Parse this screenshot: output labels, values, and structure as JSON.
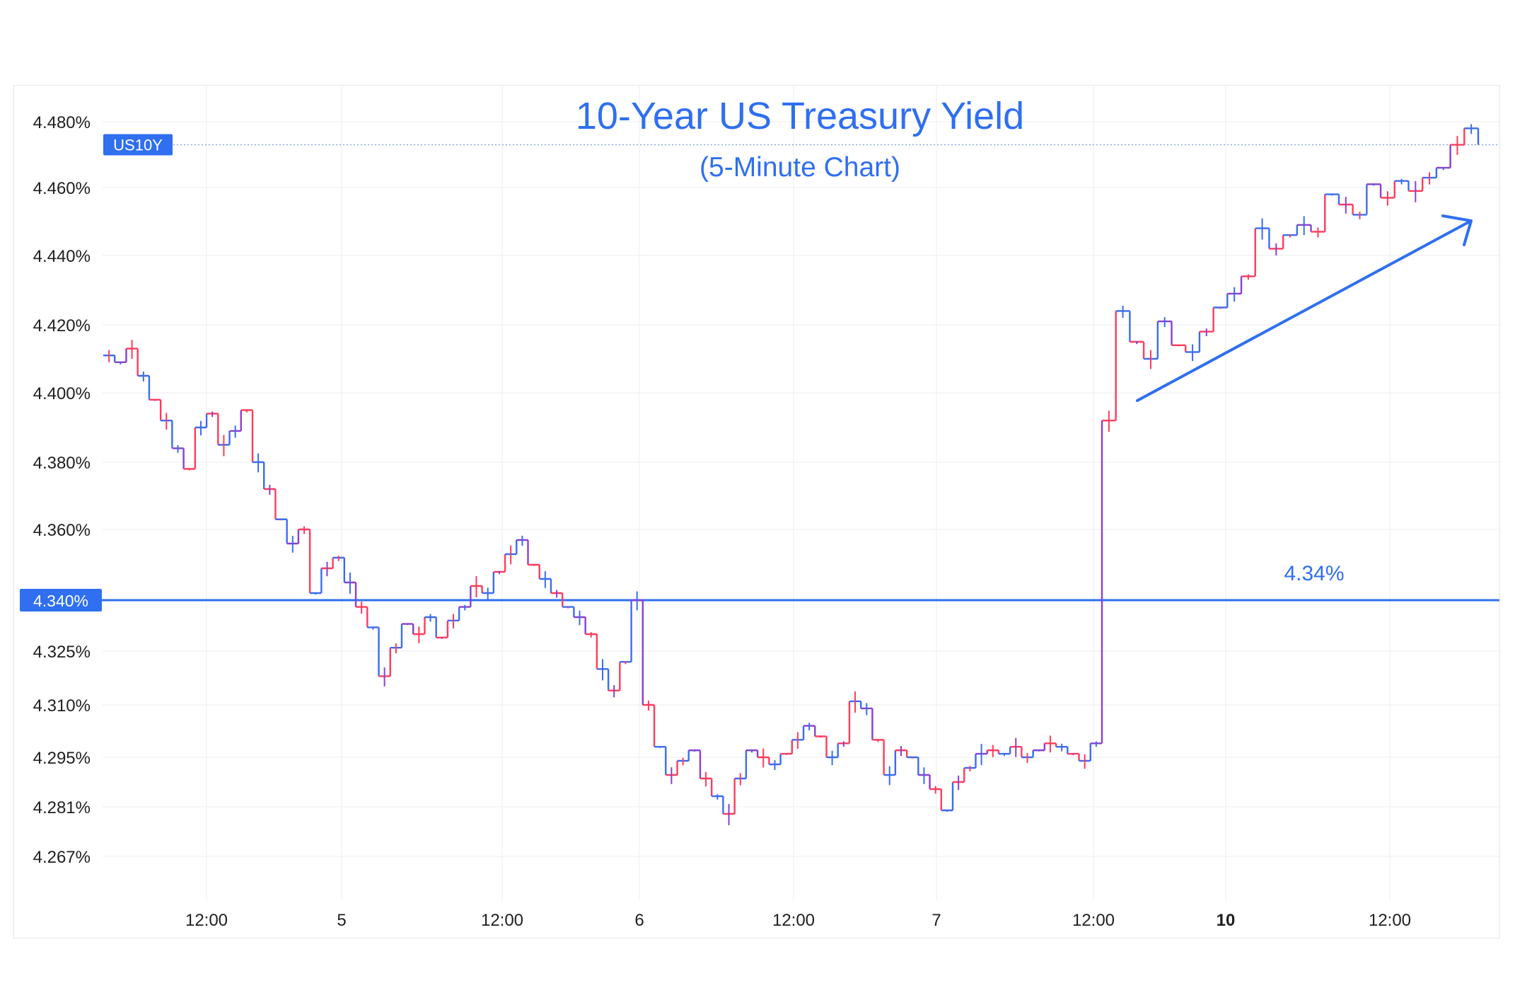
{
  "chart_data": {
    "type": "line",
    "title": "10-Year US Treasury Yield",
    "subtitle": "(5-Minute Chart)",
    "symbol_badge": "US10Y",
    "price_badge": "4.340%",
    "reference_label": "4.34%",
    "reference_value": 4.34,
    "y_ticks": [
      "4.480%",
      "4.460%",
      "4.440%",
      "4.420%",
      "4.400%",
      "4.380%",
      "4.360%",
      "4.340%",
      "4.325%",
      "4.310%",
      "4.295%",
      "4.281%",
      "4.267%"
    ],
    "x_ticks": [
      {
        "label": "12:00",
        "bold": false
      },
      {
        "label": "5",
        "bold": false
      },
      {
        "label": "12:00",
        "bold": false
      },
      {
        "label": "6",
        "bold": false
      },
      {
        "label": "12:00",
        "bold": false
      },
      {
        "label": "7",
        "bold": false
      },
      {
        "label": "12:00",
        "bold": false
      },
      {
        "label": "10",
        "bold": true
      },
      {
        "label": "12:00",
        "bold": false
      }
    ],
    "grid": true,
    "annotation": "upward trend arrow",
    "current_value": 4.473,
    "points": [
      4.411,
      4.409,
      4.413,
      4.405,
      4.398,
      4.392,
      4.384,
      4.378,
      4.39,
      4.394,
      4.385,
      4.389,
      4.395,
      4.38,
      4.372,
      4.363,
      4.356,
      4.36,
      4.342,
      4.349,
      4.352,
      4.345,
      4.338,
      4.332,
      4.318,
      4.326,
      4.333,
      4.33,
      4.335,
      4.329,
      4.334,
      4.338,
      4.344,
      4.342,
      4.348,
      4.353,
      4.357,
      4.35,
      4.346,
      4.342,
      4.338,
      4.335,
      4.33,
      4.32,
      4.314,
      4.322,
      4.34,
      4.31,
      4.298,
      4.29,
      4.294,
      4.297,
      4.289,
      4.284,
      4.279,
      4.289,
      4.297,
      4.295,
      4.293,
      4.296,
      4.3,
      4.304,
      4.301,
      4.295,
      4.299,
      4.311,
      4.309,
      4.3,
      4.29,
      4.297,
      4.295,
      4.29,
      4.286,
      4.28,
      4.288,
      4.292,
      4.296,
      4.297,
      4.296,
      4.298,
      4.295,
      4.297,
      4.299,
      4.298,
      4.296,
      4.294,
      4.299,
      4.392,
      4.424,
      4.415,
      4.41,
      4.421,
      4.414,
      4.412,
      4.418,
      4.425,
      4.429,
      4.434,
      4.448,
      4.442,
      4.446,
      4.449,
      4.447,
      4.458,
      4.455,
      4.452,
      4.461,
      4.457,
      4.462,
      4.459,
      4.463,
      4.466,
      4.473,
      4.478,
      4.473
    ]
  }
}
